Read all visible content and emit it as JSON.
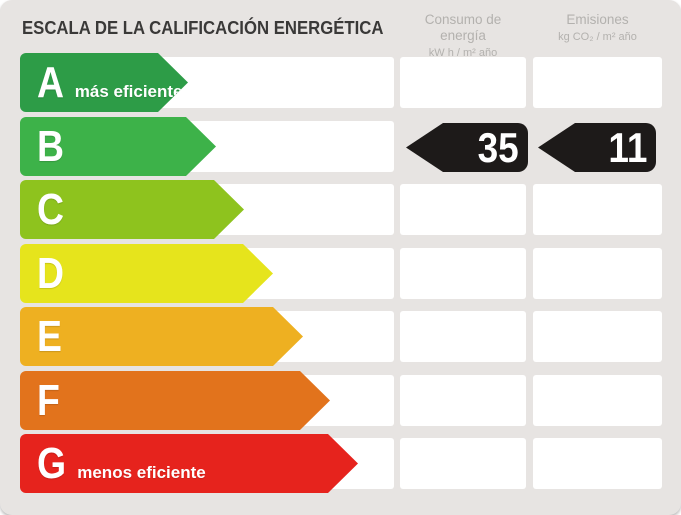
{
  "header": {
    "title": "ESCALA DE LA CALIFICACIÓN ENERGÉTICA",
    "consumo": {
      "label": "Consumo de energía",
      "unit": "kW h / m² año"
    },
    "emisiones": {
      "label": "Emisiones",
      "unit": "kg CO₂ / m² año"
    }
  },
  "scale": {
    "badge_color": "#1d1a19",
    "rows": [
      {
        "letter": "A",
        "note": "más eficiente",
        "color": "#2d9c47"
      },
      {
        "letter": "B",
        "color": "#3db249",
        "consumo": "35",
        "emisiones": "11"
      },
      {
        "letter": "C",
        "color": "#8ec31e"
      },
      {
        "letter": "D",
        "color": "#e6e41c"
      },
      {
        "letter": "E",
        "color": "#eeb021"
      },
      {
        "letter": "F",
        "color": "#e2731c"
      },
      {
        "letter": "G",
        "note": "menos eficiente",
        "color": "#e6231d"
      }
    ]
  },
  "chart_data": {
    "type": "bar",
    "title": "ESCALA DE LA CALIFICACIÓN ENERGÉTICA",
    "categories": [
      "A",
      "B",
      "C",
      "D",
      "E",
      "F",
      "G"
    ],
    "category_annotations": {
      "A": "más eficiente",
      "G": "menos eficiente"
    },
    "bar_colors": [
      "#2d9c47",
      "#3db249",
      "#8ec31e",
      "#e6e41c",
      "#eeb021",
      "#e2731c",
      "#e6231d"
    ],
    "columns": [
      {
        "label": "Consumo de energía",
        "unit": "kW h / m² año"
      },
      {
        "label": "Emisiones",
        "unit": "kg CO₂ / m² año"
      }
    ],
    "assigned_rating": "B",
    "values": {
      "consumo_energia": 35,
      "emisiones": 11
    },
    "legend_position": "none",
    "grid": false
  }
}
